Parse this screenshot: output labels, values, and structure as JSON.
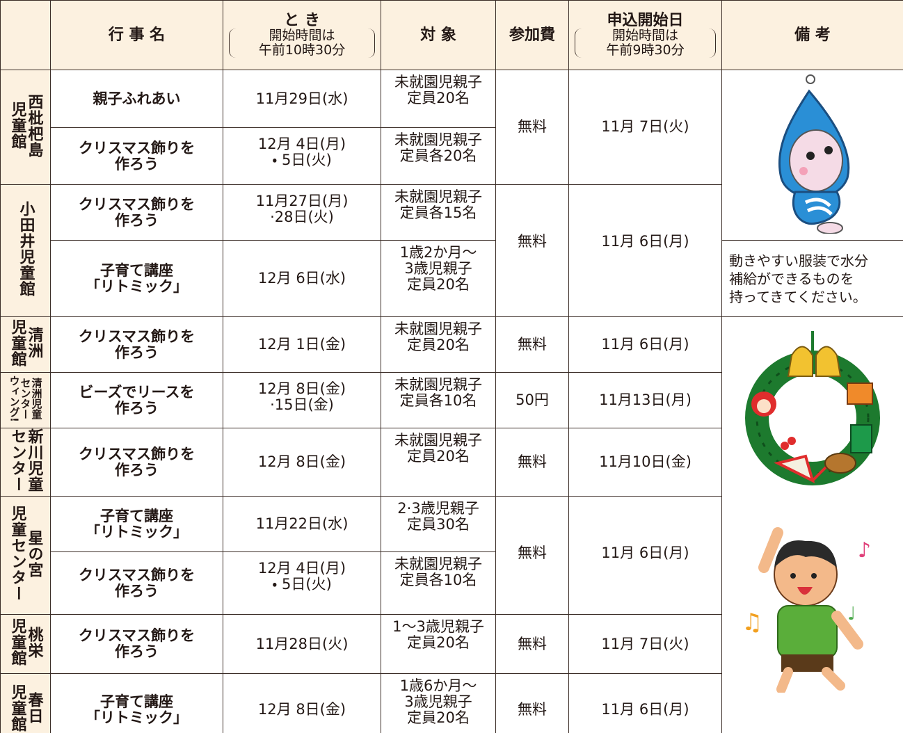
{
  "header": {
    "columns": [
      {
        "title": "行 事 名"
      },
      {
        "title": "と き",
        "note": [
          "開始時間は",
          "午前10時30分"
        ]
      },
      {
        "title": "対 象"
      },
      {
        "title": "参加費"
      },
      {
        "title": "申込開始日",
        "note": [
          "開始時間は",
          "午前9時30分"
        ]
      },
      {
        "title": "備 考"
      }
    ]
  },
  "venues": [
    {
      "name": [
        "西枇杷島",
        "児童館"
      ],
      "fee": "無料",
      "start": "11月 7日(火)",
      "events": [
        {
          "name": [
            "親子ふれあい"
          ],
          "date": [
            "11月29日(水)"
          ],
          "target": [
            "未就園児親子",
            "定員20名"
          ]
        },
        {
          "name": [
            "クリスマス飾りを",
            "作ろう"
          ],
          "date": [
            "12月 4日(月)",
            "・ 5日(火)"
          ],
          "target": [
            "未就園児親子",
            "定員各20名"
          ]
        }
      ]
    },
    {
      "name": [
        "小田井児童館"
      ],
      "fee": "無料",
      "start": "11月 6日(月)",
      "events": [
        {
          "name": [
            "クリスマス飾りを",
            "作ろう"
          ],
          "date": [
            "11月27日(月)",
            "·28日(火)"
          ],
          "target": [
            "未就園児親子",
            "定員各15名"
          ]
        },
        {
          "name": [
            "子育て講座",
            "「リトミック」"
          ],
          "date": [
            "12月 6日(水)"
          ],
          "target": [
            "1歳2か月〜",
            "3歳児親子",
            "定員20名"
          ]
        }
      ]
    },
    {
      "name": [
        "清洲",
        "児童館"
      ],
      "fee": "無料",
      "start": "11月 6日(月)",
      "events": [
        {
          "name": [
            "クリスマス飾りを",
            "作ろう"
          ],
          "date": [
            "12月 1日(金)"
          ],
          "target": [
            "未就園児親子",
            "定員20名"
          ]
        }
      ]
    },
    {
      "name": [
        "清洲児童",
        "センター",
        "ウィング!"
      ],
      "fee": "50円",
      "start": "11月13日(月)",
      "events": [
        {
          "name": [
            "ビーズでリースを",
            "作ろう"
          ],
          "date": [
            "12月 8日(金)",
            "·15日(金)"
          ],
          "target": [
            "未就園児親子",
            "定員各10名"
          ]
        }
      ]
    },
    {
      "name": [
        "新川児童",
        "センター"
      ],
      "fee": "無料",
      "start": "11月10日(金)",
      "events": [
        {
          "name": [
            "クリスマス飾りを",
            "作ろう"
          ],
          "date": [
            "12月 8日(金)"
          ],
          "target": [
            "未就園児親子",
            "定員20名"
          ]
        }
      ]
    },
    {
      "name": [
        "星の宮",
        "児童センター"
      ],
      "fee": "無料",
      "start": "11月 6日(月)",
      "events": [
        {
          "name": [
            "子育て講座",
            "「リトミック」"
          ],
          "date": [
            "11月22日(水)"
          ],
          "target": [
            "2·3歳児親子",
            "定員30名"
          ]
        },
        {
          "name": [
            "クリスマス飾りを",
            "作ろう"
          ],
          "date": [
            "12月 4日(月)",
            "・ 5日(火)"
          ],
          "target": [
            "未就園児親子",
            "定員各10名"
          ]
        }
      ]
    },
    {
      "name": [
        "桃栄",
        "児童館"
      ],
      "fee": "無料",
      "start": "11月 7日(火)",
      "events": [
        {
          "name": [
            "クリスマス飾りを",
            "作ろう"
          ],
          "date": [
            "11月28日(火)"
          ],
          "target": [
            "1〜3歳児親子",
            "定員20名"
          ]
        }
      ]
    },
    {
      "name": [
        "春日",
        "児童館"
      ],
      "fee": "無料",
      "start": "11月 6日(月)",
      "events": [
        {
          "name": [
            "子育て講座",
            "「リトミック」"
          ],
          "date": [
            "12月 8日(金)"
          ],
          "target": [
            "1歳6か月〜",
            "3歳児親子",
            "定員20名"
          ]
        }
      ]
    }
  ],
  "notes": {
    "text": [
      "動きやすい服装で水分",
      "補給ができるものを",
      "持ってきてください。"
    ]
  }
}
